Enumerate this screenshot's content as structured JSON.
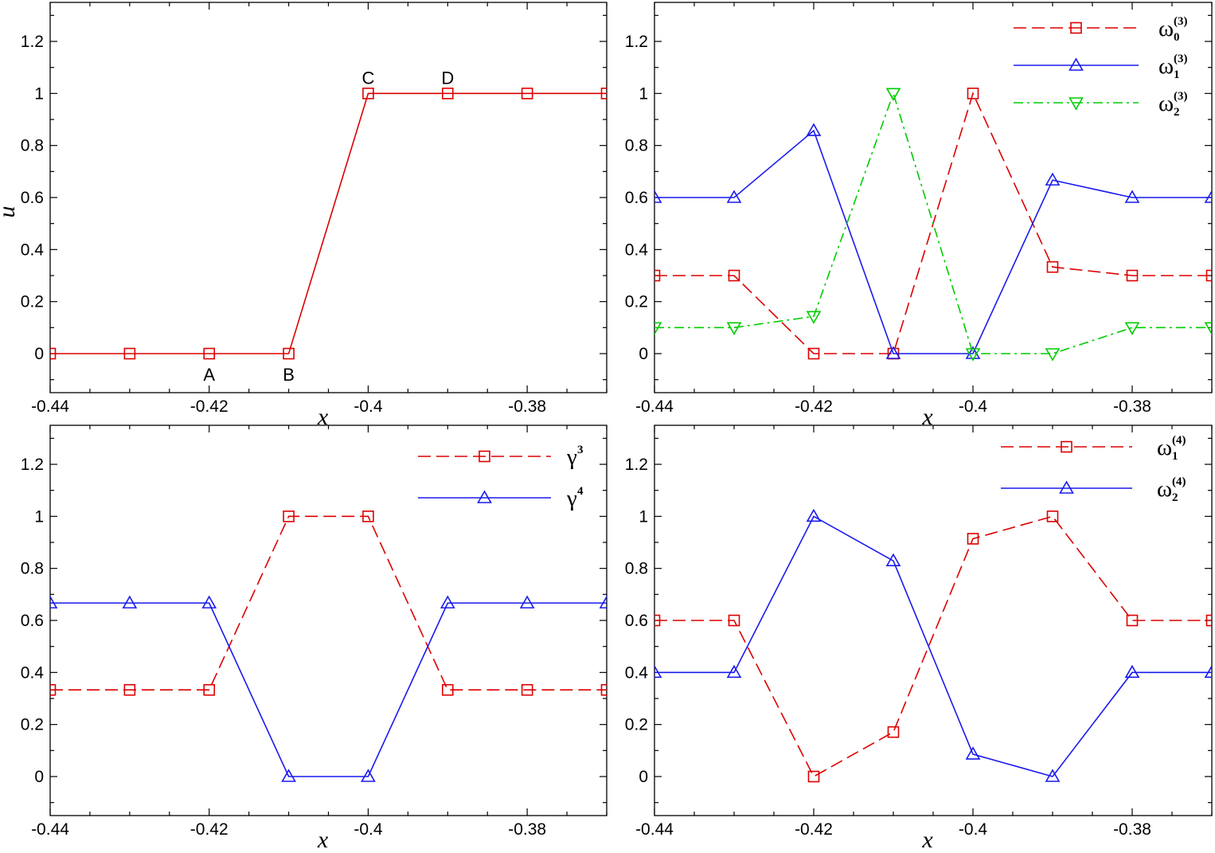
{
  "chart_data": [
    {
      "type": "line",
      "title": "",
      "xlabel": "x",
      "ylabel": "u",
      "xlim": [
        -0.44,
        -0.37
      ],
      "ylim": [
        -0.15,
        1.35
      ],
      "xticks": [
        "-0.44",
        "-0.42",
        "-0.4",
        "-0.38"
      ],
      "yticks": [
        "0",
        "0.2",
        "0.4",
        "0.6",
        "0.8",
        "1",
        "1.2"
      ],
      "x": [
        -0.44,
        -0.43,
        -0.42,
        -0.41,
        -0.4,
        -0.39,
        -0.38,
        -0.37
      ],
      "series": [
        {
          "name": "",
          "color": "#dd0000",
          "dash": "solid",
          "marker": "square",
          "values": [
            0,
            0,
            0,
            0,
            1,
            1,
            1,
            1
          ]
        }
      ],
      "annotations": [
        {
          "text": "A",
          "x": -0.42,
          "y": 0,
          "pos": "below"
        },
        {
          "text": "B",
          "x": -0.41,
          "y": 0,
          "pos": "below"
        },
        {
          "text": "C",
          "x": -0.4,
          "y": 1,
          "pos": "above"
        },
        {
          "text": "D",
          "x": -0.39,
          "y": 1,
          "pos": "above"
        }
      ],
      "legend": []
    },
    {
      "type": "line",
      "title": "",
      "xlabel": "x",
      "ylabel": "",
      "xlim": [
        -0.44,
        -0.37
      ],
      "ylim": [
        -0.15,
        1.35
      ],
      "xticks": [
        "-0.44",
        "-0.42",
        "-0.4",
        "-0.38"
      ],
      "yticks": [
        "0",
        "0.2",
        "0.4",
        "0.6",
        "0.8",
        "1",
        "1.2"
      ],
      "x": [
        -0.44,
        -0.43,
        -0.42,
        -0.41,
        -0.4,
        -0.39,
        -0.38,
        -0.37
      ],
      "series": [
        {
          "name": "ω0(3)",
          "color": "#dd0000",
          "dash": "dashed",
          "marker": "square",
          "values": [
            0.3,
            0.3,
            0,
            0,
            1,
            0.333,
            0.3,
            0.3
          ]
        },
        {
          "name": "ω1(3)",
          "color": "#1a1aee",
          "dash": "solid",
          "marker": "triangle-up",
          "values": [
            0.6,
            0.6,
            0.857,
            0,
            0,
            0.667,
            0.6,
            0.6
          ]
        },
        {
          "name": "ω2(3)",
          "color": "#00cc00",
          "dash": "dashdot",
          "marker": "triangle-down",
          "values": [
            0.1,
            0.1,
            0.143,
            1,
            0,
            0,
            0.1,
            0.1
          ]
        }
      ],
      "legend": [
        {
          "base": "ω",
          "sub": "0",
          "sup": "(3)"
        },
        {
          "base": "ω",
          "sub": "1",
          "sup": "(3)"
        },
        {
          "base": "ω",
          "sub": "2",
          "sup": "(3)"
        }
      ],
      "legend_position": "top-right"
    },
    {
      "type": "line",
      "title": "",
      "xlabel": "x",
      "ylabel": "",
      "xlim": [
        -0.44,
        -0.37
      ],
      "ylim": [
        -0.15,
        1.35
      ],
      "xticks": [
        "-0.44",
        "-0.42",
        "-0.4",
        "-0.38"
      ],
      "yticks": [
        "0",
        "0.2",
        "0.4",
        "0.6",
        "0.8",
        "1",
        "1.2"
      ],
      "x": [
        -0.44,
        -0.43,
        -0.42,
        -0.41,
        -0.4,
        -0.39,
        -0.38,
        -0.37
      ],
      "series": [
        {
          "name": "γ3",
          "color": "#dd0000",
          "dash": "dashed",
          "marker": "square",
          "values": [
            0.333,
            0.333,
            0.333,
            1,
            1,
            0.333,
            0.333,
            0.333
          ]
        },
        {
          "name": "γ4",
          "color": "#1a1aee",
          "dash": "solid",
          "marker": "triangle-up",
          "values": [
            0.667,
            0.667,
            0.667,
            0,
            0,
            0.667,
            0.667,
            0.667
          ]
        }
      ],
      "legend": [
        {
          "base": "γ",
          "sub": "",
          "sup": "3"
        },
        {
          "base": "γ",
          "sub": "",
          "sup": "4"
        }
      ],
      "legend_position": "top-right"
    },
    {
      "type": "line",
      "title": "",
      "xlabel": "x",
      "ylabel": "",
      "xlim": [
        -0.44,
        -0.37
      ],
      "ylim": [
        -0.15,
        1.35
      ],
      "xticks": [
        "-0.44",
        "-0.42",
        "-0.4",
        "-0.38"
      ],
      "yticks": [
        "0",
        "0.2",
        "0.4",
        "0.6",
        "0.8",
        "1",
        "1.2"
      ],
      "x": [
        -0.44,
        -0.43,
        -0.42,
        -0.41,
        -0.4,
        -0.39,
        -0.38,
        -0.37
      ],
      "series": [
        {
          "name": "ω1(4)",
          "color": "#dd0000",
          "dash": "dashed",
          "marker": "square",
          "values": [
            0.6,
            0.6,
            0,
            0.171,
            0.914,
            1,
            0.6,
            0.6
          ]
        },
        {
          "name": "ω2(4)",
          "color": "#1a1aee",
          "dash": "solid",
          "marker": "triangle-up",
          "values": [
            0.4,
            0.4,
            1,
            0.829,
            0.086,
            0,
            0.4,
            0.4
          ]
        }
      ],
      "legend": [
        {
          "base": "ω",
          "sub": "1",
          "sup": "(4)"
        },
        {
          "base": "ω",
          "sub": "2",
          "sup": "(4)"
        }
      ],
      "legend_position": "top-right"
    }
  ]
}
